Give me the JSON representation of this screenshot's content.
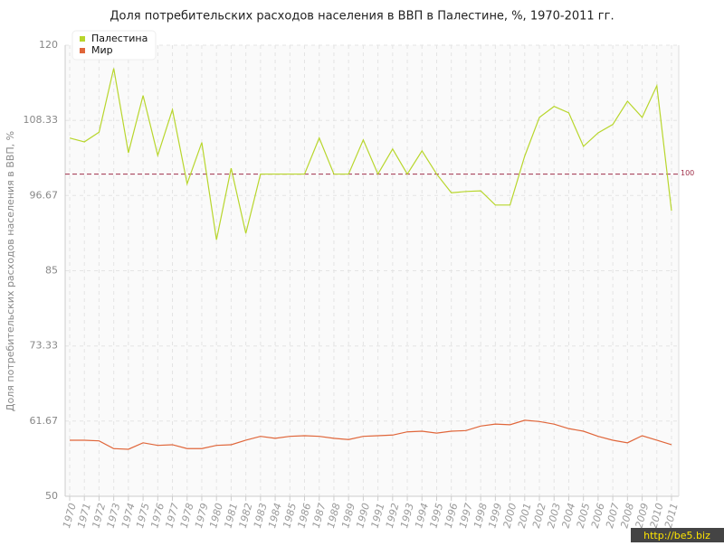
{
  "chart_data": {
    "type": "line",
    "title": "Доля потребительских расходов населения в ВВП в Палестине, %, 1970-2011 гг.",
    "y_label": "Доля потребительских расходов населения в ВВП, %",
    "categories": [
      "1970",
      "1971",
      "1972",
      "1973",
      "1974",
      "1975",
      "1976",
      "1977",
      "1978",
      "1979",
      "1980",
      "1981",
      "1982",
      "1983",
      "1984",
      "1985",
      "1986",
      "1987",
      "1988",
      "1989",
      "1990",
      "1991",
      "1992",
      "1993",
      "1994",
      "1995",
      "1996",
      "1997",
      "1998",
      "1999",
      "2000",
      "2001",
      "2002",
      "2003",
      "2004",
      "2005",
      "2006",
      "2007",
      "2008",
      "2009",
      "2010",
      "2011"
    ],
    "series": [
      {
        "name": "Палестина",
        "color": "#b8d62c",
        "values": [
          105.6,
          105.0,
          106.5,
          116.4,
          103.3,
          112.2,
          102.9,
          110.0,
          98.5,
          104.9,
          89.8,
          100.9,
          90.8,
          100,
          100,
          100,
          100,
          105.6,
          100,
          100,
          105.3,
          100,
          103.9,
          100,
          103.6,
          100,
          97.1,
          97.3,
          97.4,
          95.2,
          95.2,
          102.8,
          108.8,
          110.5,
          109.5,
          104.3,
          106.4,
          107.7,
          111.3,
          108.8,
          113.7,
          94.3
        ]
      },
      {
        "name": "Мир",
        "color": "#e0663a",
        "values": [
          58.7,
          58.7,
          58.6,
          57.4,
          57.3,
          58.3,
          57.9,
          58.0,
          57.4,
          57.4,
          57.9,
          58.0,
          58.7,
          59.3,
          59.0,
          59.3,
          59.4,
          59.3,
          59.0,
          58.8,
          59.3,
          59.4,
          59.5,
          60.0,
          60.1,
          59.8,
          60.1,
          60.2,
          60.9,
          61.2,
          61.1,
          61.8,
          61.6,
          61.2,
          60.5,
          60.1,
          59.3,
          58.7,
          58.3,
          59.4,
          58.7,
          58.0
        ]
      }
    ],
    "ylim": [
      50,
      120
    ],
    "yticks": [
      50,
      61.67,
      73.33,
      85,
      96.67,
      108.33,
      120
    ],
    "grid": true,
    "legend": "top-left",
    "reference_line": {
      "value": 100,
      "color": "#a0304a"
    },
    "watermark": "http://be5.biz"
  }
}
